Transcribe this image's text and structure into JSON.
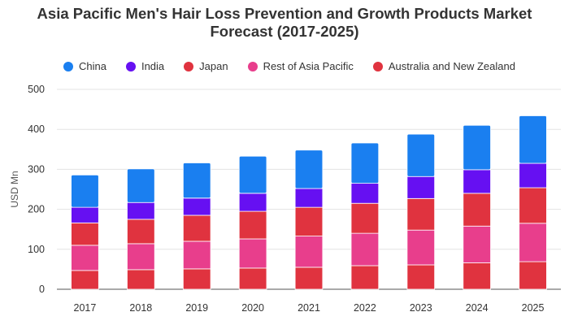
{
  "chart_data": {
    "type": "bar",
    "stacked": true,
    "title": "Asia Pacific Men's Hair Loss Prevention and Growth Products Market Forecast (2017-2025)",
    "title_lines": [
      "Asia Pacific Men's Hair Loss Prevention and Growth Products Market",
      "Forecast (2017-2025)"
    ],
    "xlabel": "",
    "ylabel": "USD Mn",
    "ylim": [
      0,
      500
    ],
    "yticks": [
      0,
      100,
      200,
      300,
      400,
      500
    ],
    "grid": true,
    "legend_position": "top-left",
    "categories": [
      "2017",
      "2018",
      "2019",
      "2020",
      "2021",
      "2022",
      "2023",
      "2024",
      "2025"
    ],
    "series": [
      {
        "name": "Australia and New Zealand",
        "color": "#e0333f",
        "values": [
          47,
          49,
          51,
          53,
          55,
          59,
          61,
          66,
          69
        ]
      },
      {
        "name": "Rest of Asia Pacific",
        "color": "#e83e8c",
        "values": [
          63,
          65,
          69,
          73,
          78,
          81,
          87,
          92,
          96
        ]
      },
      {
        "name": "Japan",
        "color": "#e0333f",
        "values": [
          56,
          61,
          65,
          69,
          72,
          75,
          79,
          82,
          89
        ]
      },
      {
        "name": "India",
        "color": "#6610f2",
        "values": [
          39,
          42,
          43,
          45,
          47,
          50,
          55,
          59,
          61
        ]
      },
      {
        "name": "China",
        "color": "#1a7ff0",
        "values": [
          81,
          84,
          88,
          93,
          96,
          101,
          106,
          111,
          119
        ]
      }
    ],
    "legend_order": [
      "China",
      "India",
      "Japan",
      "Rest of Asia Pacific",
      "Australia and New Zealand"
    ]
  }
}
